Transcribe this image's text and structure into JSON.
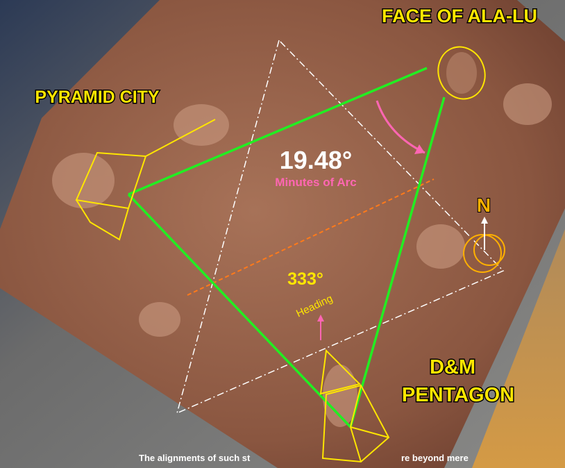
{
  "labels": {
    "face": "FACE OF ALA-LU",
    "pyramid_city": "PYRAMID CITY",
    "angle": "19.48°",
    "angle_unit": "Minutes of Arc",
    "north": "N",
    "heading_value": "333°",
    "heading": "Heading",
    "pentagon_line1": "D&M",
    "pentagon_line2": "PENTAGON"
  },
  "caption": [
    "The alignments of such st",
    "re beyond mere"
  ]
}
